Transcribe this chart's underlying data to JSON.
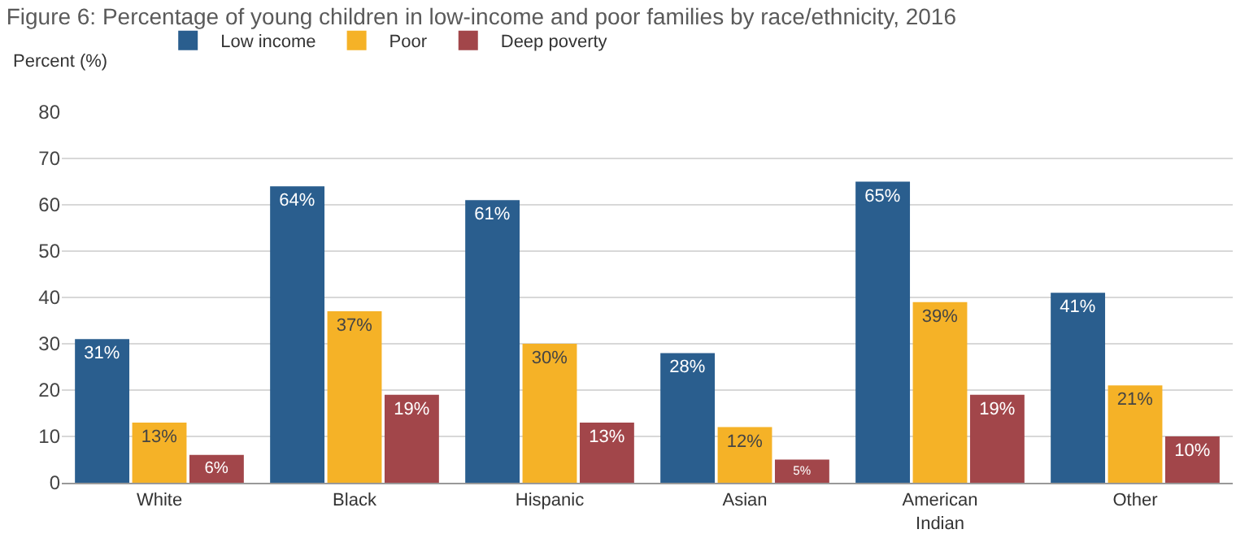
{
  "chart_data": {
    "type": "bar",
    "title": "Figure 6: Percentage of young children in low-income and poor families by race/ethnicity, 2016",
    "ylabel": "Percent (%)",
    "categories": [
      "White",
      "Black",
      "Hispanic",
      "Asian",
      "American Indian",
      "Other"
    ],
    "series": [
      {
        "name": "Low income",
        "color": "#2a5e8e",
        "values": [
          31,
          64,
          61,
          28,
          65,
          41
        ],
        "value_labels": [
          "31%",
          "64%",
          "61%",
          "28%",
          "65%",
          "41%"
        ]
      },
      {
        "name": "Poor",
        "color": "#f5b227",
        "values": [
          13,
          37,
          30,
          12,
          39,
          21
        ],
        "value_labels": [
          "13%",
          "37%",
          "30%",
          "12%",
          "39%",
          "21%"
        ]
      },
      {
        "name": "Deep poverty",
        "color": "#a2464a",
        "values": [
          6,
          19,
          13,
          5,
          19,
          10
        ],
        "value_labels": [
          "6%",
          "19%",
          "13%",
          "5%",
          "19%",
          "10%"
        ]
      }
    ],
    "ylim": [
      0,
      80
    ],
    "yticks": [
      0,
      10,
      20,
      30,
      40,
      50,
      60,
      70,
      80
    ],
    "grid": "y",
    "legend": "top"
  }
}
